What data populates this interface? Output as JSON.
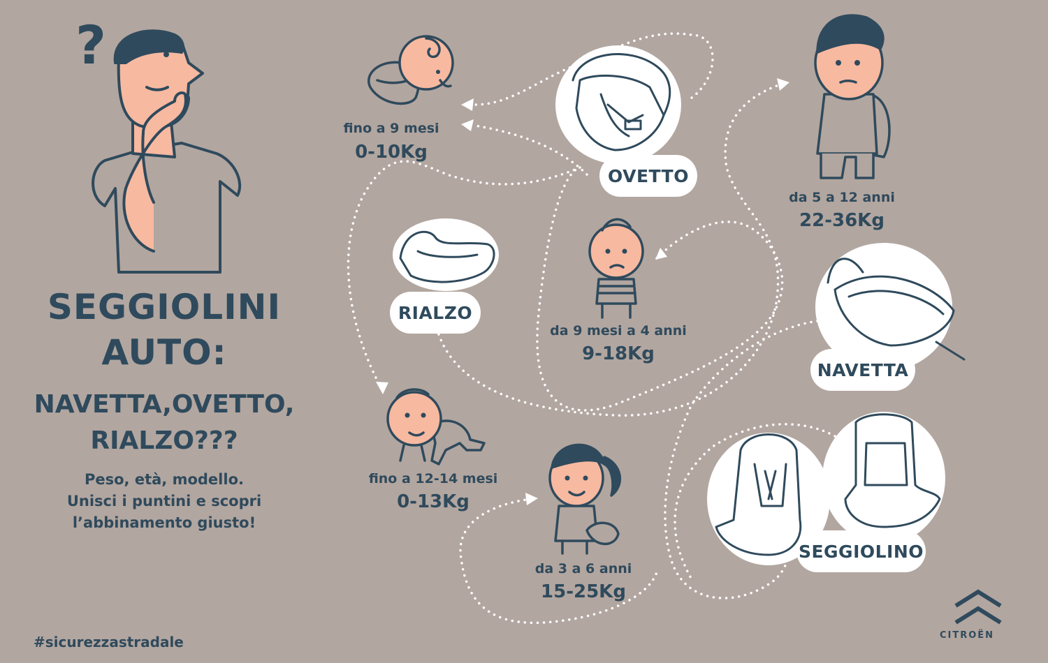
{
  "headline": {
    "line1": "SEGGIOLINI",
    "line2": "AUTO:",
    "line3": "NAVETTA,OVETTO,",
    "line4": "RIALZO???"
  },
  "intro": {
    "line1": "Peso, età, modello.",
    "line2": "Unisci i puntini e scopri",
    "line3": "l’abbinamento giusto!"
  },
  "question_mark": "?",
  "groups": {
    "newborn": {
      "age": "fino a 9 mesi",
      "weight": "0-10Kg"
    },
    "crawler": {
      "age": "fino a 12-14 mesi",
      "weight": "0-13Kg"
    },
    "toddler": {
      "age": "da 9 mesi a 4 anni",
      "weight": "9-18Kg"
    },
    "girl": {
      "age": "da 3 a 6 anni",
      "weight": "15-25Kg"
    },
    "schoolboy": {
      "age": "da 5 a 12 anni",
      "weight": "22-36Kg"
    }
  },
  "seats": {
    "ovetto": "OVETTO",
    "rialzo": "RIALZO",
    "navetta": "NAVETTA",
    "seggiolino": "SEGGIOLINO"
  },
  "footer": {
    "hashtag": "#sicurezzastradale",
    "brand": "CITROËN"
  },
  "colors": {
    "background": "#b2a6a0",
    "ink": "#2f4a5c",
    "skin": "#f7b9a0",
    "bubble": "#ffffff",
    "dots": "#ffffff"
  }
}
